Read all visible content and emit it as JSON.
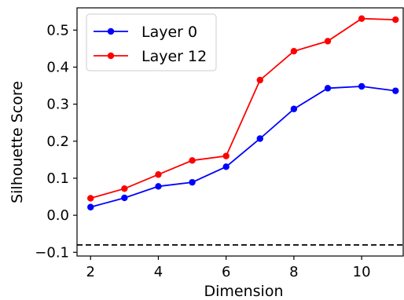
{
  "chart_data": {
    "type": "line",
    "title": "",
    "xlabel": "Dimension",
    "ylabel": "Silhouette Score",
    "xlim": [
      1.6,
      11.25
    ],
    "ylim": [
      -0.11,
      0.56
    ],
    "xticks": [
      2,
      4,
      6,
      8,
      10
    ],
    "xtick_labels": [
      "2",
      "4",
      "6",
      "8",
      "10"
    ],
    "yticks": [
      -0.1,
      0.0,
      0.1,
      0.2,
      0.3,
      0.4,
      0.5
    ],
    "ytick_labels": [
      "−0.1",
      "0.0",
      "0.1",
      "0.2",
      "0.3",
      "0.4",
      "0.5"
    ],
    "grid": false,
    "legend_position": "top-left",
    "x": [
      2,
      3,
      4,
      5,
      6,
      7,
      8,
      9,
      10,
      11
    ],
    "series": [
      {
        "name": "Layer 0",
        "color": "#0000ff",
        "values": [
          0.022,
          0.047,
          0.078,
          0.089,
          0.131,
          0.207,
          0.287,
          0.343,
          0.348,
          0.336
        ]
      },
      {
        "name": "Layer 12",
        "color": "#ff0000",
        "values": [
          0.046,
          0.072,
          0.11,
          0.148,
          0.16,
          0.365,
          0.443,
          0.47,
          0.531,
          0.528
        ]
      }
    ],
    "reference_line": {
      "y": -0.08,
      "style": "dashed",
      "color": "#000000"
    }
  }
}
